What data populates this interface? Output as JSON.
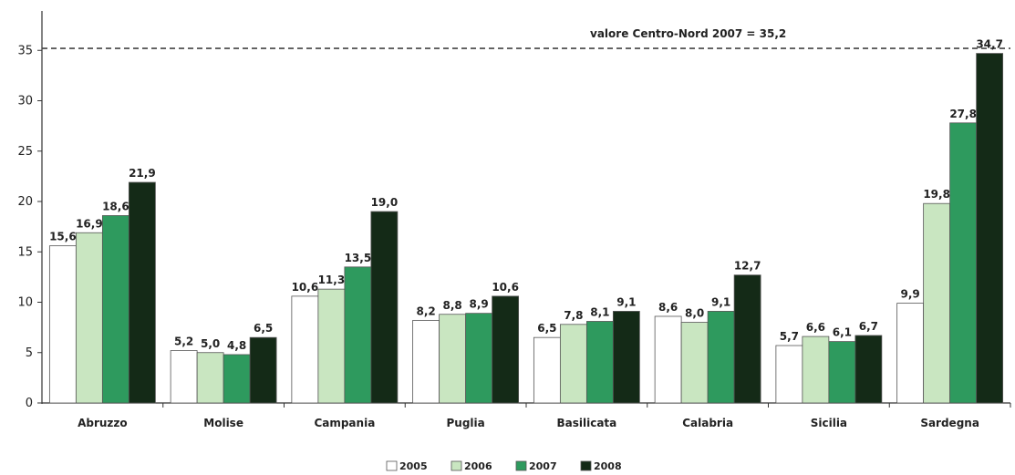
{
  "chart_data": {
    "type": "bar",
    "categories": [
      "Abruzzo",
      "Molise",
      "Campania",
      "Puglia",
      "Basilicata",
      "Calabria",
      "Sicilia",
      "Sardegna"
    ],
    "series": [
      {
        "name": "2005",
        "color": "#ffffff",
        "values": [
          15.6,
          5.2,
          10.6,
          8.2,
          6.5,
          8.6,
          5.7,
          9.9
        ],
        "labels": [
          "15,6",
          "5,2",
          "10,6",
          "8,2",
          "6,5",
          "8,6",
          "5,7",
          "9,9"
        ]
      },
      {
        "name": "2006",
        "color": "#c9e6c1",
        "values": [
          16.9,
          5.0,
          11.3,
          8.8,
          7.8,
          8.0,
          6.6,
          19.8
        ],
        "labels": [
          "16,9",
          "5,0",
          "11,3",
          "8,8",
          "7,8",
          "8,0",
          "6,6",
          "19,8"
        ]
      },
      {
        "name": "2007",
        "color": "#2e9a5e",
        "values": [
          18.6,
          4.8,
          13.5,
          8.9,
          8.1,
          9.1,
          6.1,
          27.8
        ],
        "labels": [
          "18,6",
          "4,8",
          "13,5",
          "8,9",
          "8,1",
          "9,1",
          "6,1",
          "27,8"
        ]
      },
      {
        "name": "2008",
        "color": "#142a17",
        "values": [
          21.9,
          6.5,
          19.0,
          10.6,
          9.1,
          12.7,
          6.7,
          34.7
        ],
        "labels": [
          "21,9",
          "6,5",
          "19,0",
          "10,6",
          "9,1",
          "12,7",
          "6,7",
          "34,7"
        ]
      }
    ],
    "yticks": [
      0,
      5,
      10,
      15,
      20,
      25,
      30,
      35
    ],
    "ylim": [
      0,
      38
    ],
    "reference_line": {
      "value": 35.2,
      "label": "valore Centro-Nord  2007 = 35,2"
    },
    "legend_position": "bottom",
    "grid": false
  }
}
